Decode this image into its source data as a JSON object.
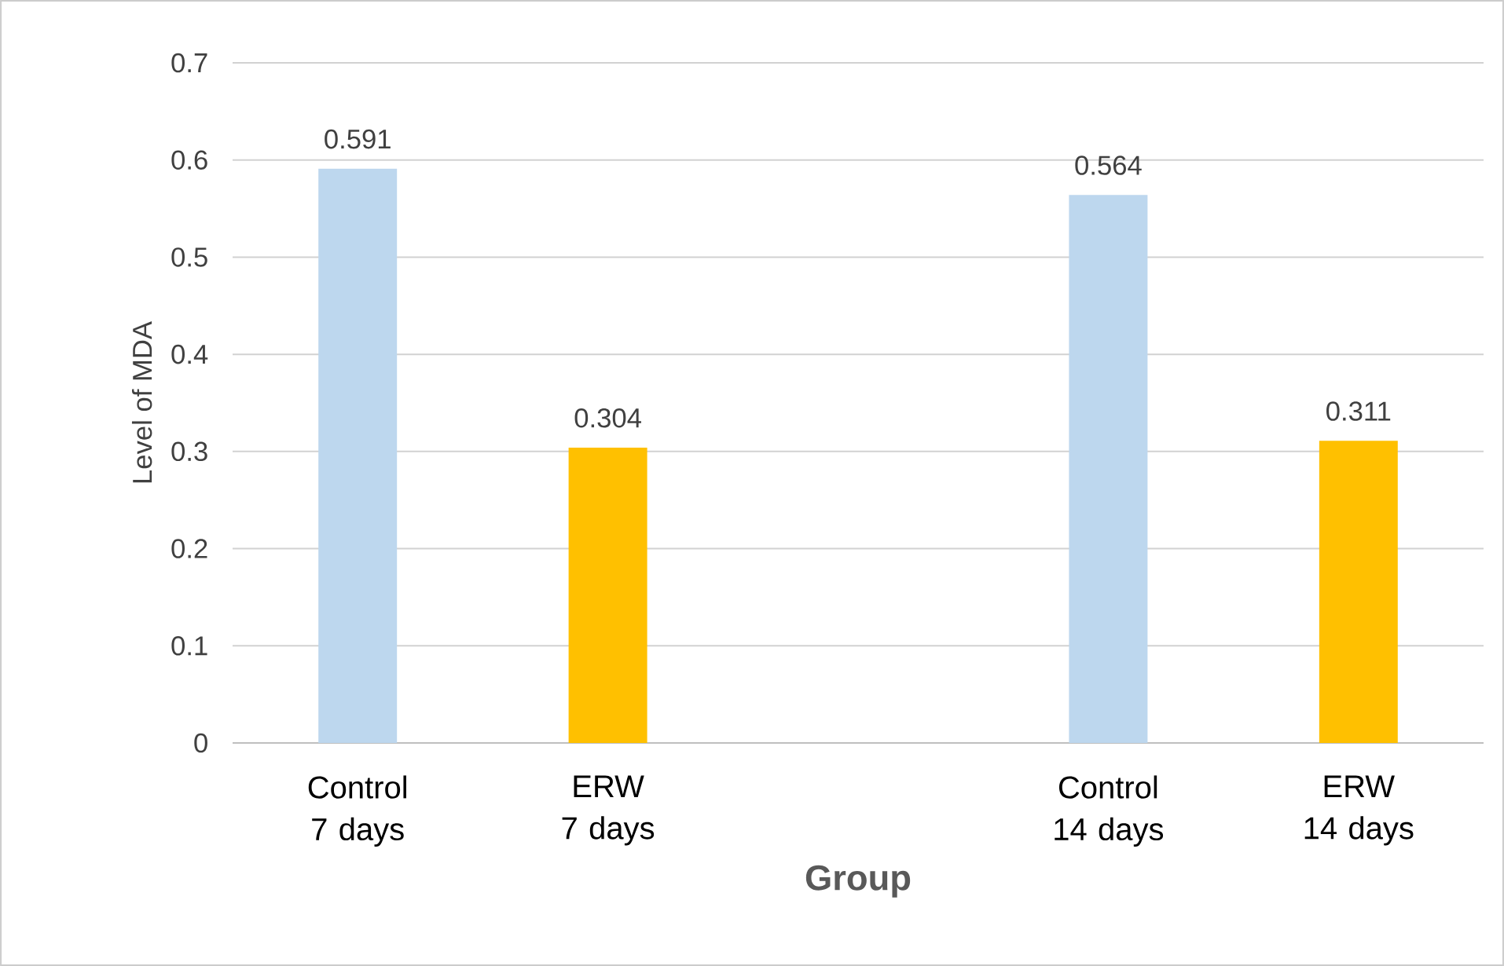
{
  "chart_data": {
    "type": "bar",
    "xlabel": "Group",
    "ylabel": "Level of MDA",
    "categories": [
      "Control 7 days",
      "ERW 7 days",
      null,
      "Control 14 days",
      "ERW 14 days"
    ],
    "values": [
      0.591,
      0.304,
      null,
      0.564,
      0.311
    ],
    "colors": [
      "#bdd7ee",
      "#ffc000",
      null,
      "#bdd7ee",
      "#ffc000"
    ],
    "ylim": [
      0,
      0.7
    ],
    "yticks": [
      0,
      0.1,
      0.2,
      0.3,
      0.4,
      0.5,
      0.6,
      0.7
    ],
    "grid": "y",
    "data_labels": true
  }
}
